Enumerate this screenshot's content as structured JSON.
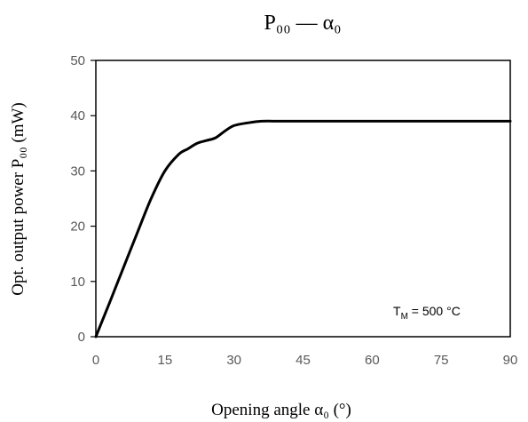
{
  "chart_data": {
    "type": "line",
    "title": "P₀₀ — α₀",
    "xlabel": "Opening angle α₀ (°)",
    "ylabel": "Opt. output power P₀₀ (mW)",
    "xlim": [
      0,
      90
    ],
    "ylim": [
      0,
      50
    ],
    "xticks": [
      "0",
      "15",
      "30",
      "45",
      "60",
      "75",
      "90"
    ],
    "yticks": [
      "0",
      "10",
      "20",
      "30",
      "40",
      "50"
    ],
    "grid": false,
    "legend": "none",
    "annotation": {
      "base": "T",
      "sub": "M",
      "rest": " = 500 °C"
    },
    "series": [
      {
        "color": "#000000",
        "x": [
          0,
          3,
          6,
          9,
          12,
          15,
          18,
          20,
          22,
          24,
          26,
          28,
          30,
          33,
          36,
          40,
          45,
          60,
          75,
          90
        ],
        "y": [
          0,
          6.2,
          12.5,
          18.8,
          25,
          30,
          33,
          34,
          35,
          35.5,
          36,
          37.2,
          38.2,
          38.7,
          39,
          39,
          39,
          39,
          39,
          39
        ]
      }
    ]
  }
}
